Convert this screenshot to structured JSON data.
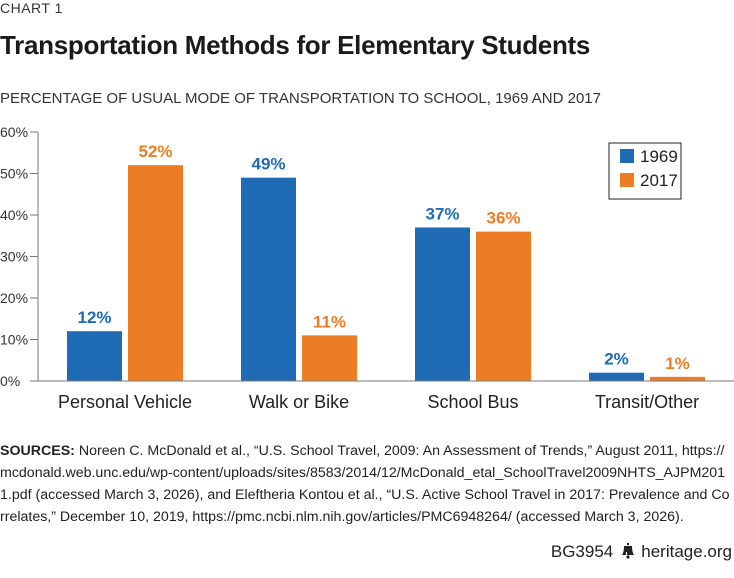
{
  "header": {
    "chart_number": "CHART 1",
    "title": "Transportation Methods for Elementary Students",
    "subtitle": "PERCENTAGE OF USUAL MODE OF TRANSPORTATION TO SCHOOL, 1969 AND 2017"
  },
  "colors": {
    "series_1969": "#1f6bb6",
    "series_2017": "#ec7d25",
    "axis": "#777777",
    "text": "#222222"
  },
  "chart_data": {
    "type": "bar",
    "title": "Transportation Methods for Elementary Students",
    "subtitle": "PERCENTAGE OF USUAL MODE OF TRANSPORTATION TO SCHOOL, 1969 AND 2017",
    "xlabel": "",
    "ylabel": "",
    "ylim": [
      0,
      60
    ],
    "yticks": [
      0,
      10,
      20,
      30,
      40,
      50,
      60
    ],
    "ytick_labels": [
      "0%",
      "10%",
      "20%",
      "30%",
      "40%",
      "50%",
      "60%"
    ],
    "categories": [
      "Personal Vehicle",
      "Walk or Bike",
      "School Bus",
      "Transit/Other"
    ],
    "series": [
      {
        "name": "1969",
        "values": [
          12,
          49,
          37,
          2
        ],
        "labels": [
          "12%",
          "49%",
          "37%",
          "2%"
        ]
      },
      {
        "name": "2017",
        "values": [
          52,
          11,
          36,
          1
        ],
        "labels": [
          "52%",
          "11%",
          "36%",
          "1%"
        ]
      }
    ],
    "legend": "top-right",
    "grid": false
  },
  "sources": {
    "label": "SOURCES:",
    "text": " Noreen C. McDonald et al., “U.S. School Travel, 2009: An Assessment of Trends,” August 2011, https://mcdonald.web.unc.edu/wp-content/uploads/sites/8583/2014/12/McDonald_etal_SchoolTravel2009NHTS_AJPM2011.pdf (accessed March 3, 2026), and Eleftheria Kontou et al., “U.S. Active School Travel in 2017: Prevalence and Correlates,” December 10, 2019, https://pmc.ncbi.nlm.nih.gov/articles/PMC6948264/ (accessed March 3, 2026)."
  },
  "footer": {
    "code": "BG3954",
    "icon": "liberty-bell-icon",
    "site": "heritage.org"
  }
}
